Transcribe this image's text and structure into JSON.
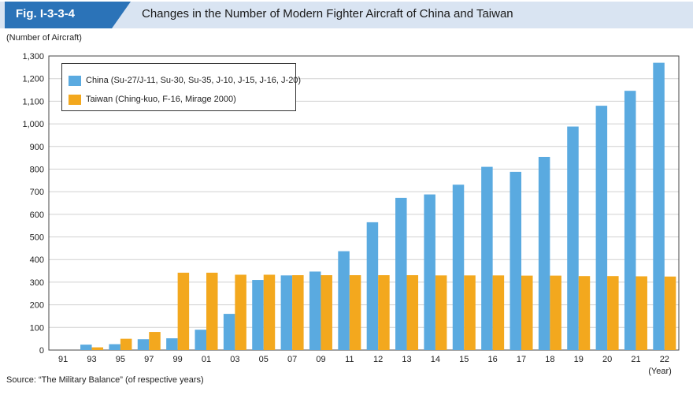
{
  "figure": {
    "number": "Fig. I-3-3-4",
    "title": "Changes in the Number of Modern Fighter Aircraft of China and Taiwan",
    "y_unit_label": "(Number of Aircraft)",
    "x_unit_label": "(Year)",
    "source": "Source: “The Military Balance” (of respective years)"
  },
  "colors": {
    "china": "#5aaae0",
    "taiwan": "#f3a81e",
    "header_tab": "#2b73b8",
    "header_band": "#d9e4f2"
  },
  "chart_data": {
    "type": "bar",
    "title": "Changes in the Number of Modern Fighter Aircraft of China and Taiwan",
    "ylabel": "(Number of Aircraft)",
    "xlabel": "(Year)",
    "ylim": [
      0,
      1300
    ],
    "yticks": [
      0,
      100,
      200,
      300,
      400,
      500,
      600,
      700,
      800,
      900,
      1000,
      1100,
      1200,
      1300
    ],
    "ytick_labels": [
      "0",
      "100",
      "200",
      "300",
      "400",
      "500",
      "600",
      "700",
      "800",
      "900",
      "1,000",
      "1,100",
      "1,200",
      "1,300"
    ],
    "grid": true,
    "legend_position": "top-left",
    "categories": [
      "91",
      "93",
      "95",
      "97",
      "99",
      "01",
      "03",
      "05",
      "07",
      "09",
      "11",
      "12",
      "13",
      "14",
      "15",
      "16",
      "17",
      "18",
      "19",
      "20",
      "21",
      "22"
    ],
    "series": [
      {
        "name": "China (Su-27/J-11, Su-30, Su-35, J-10, J-15, J-16, J-20)",
        "color": "#5aaae0",
        "values": [
          0,
          24,
          26,
          48,
          52,
          90,
          160,
          310,
          330,
          347,
          437,
          565,
          673,
          688,
          731,
          810,
          788,
          854,
          988,
          1080,
          1146,
          1270
        ]
      },
      {
        "name": "Taiwan (Ching-kuo, F-16, Mirage 2000)",
        "color": "#f3a81e",
        "values": [
          0,
          12,
          50,
          80,
          342,
          342,
          333,
          333,
          331,
          331,
          331,
          331,
          331,
          330,
          330,
          330,
          329,
          329,
          327,
          327,
          326,
          325
        ]
      }
    ]
  }
}
